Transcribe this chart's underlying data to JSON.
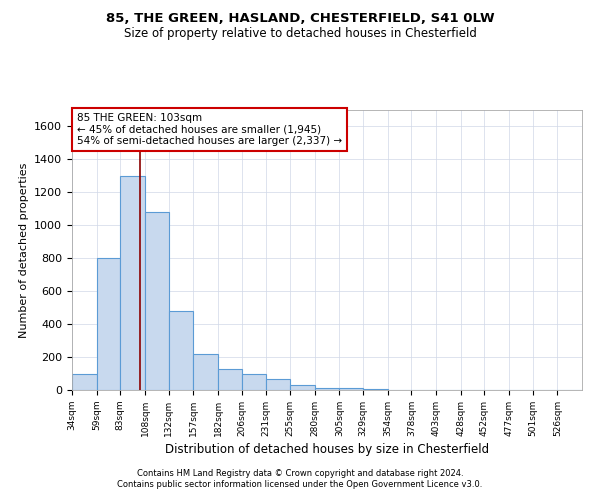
{
  "title_line1": "85, THE GREEN, HASLAND, CHESTERFIELD, S41 0LW",
  "title_line2": "Size of property relative to detached houses in Chesterfield",
  "xlabel": "Distribution of detached houses by size in Chesterfield",
  "ylabel": "Number of detached properties",
  "bin_labels": [
    "34sqm",
    "59sqm",
    "83sqm",
    "108sqm",
    "132sqm",
    "157sqm",
    "182sqm",
    "206sqm",
    "231sqm",
    "255sqm",
    "280sqm",
    "305sqm",
    "329sqm",
    "354sqm",
    "378sqm",
    "403sqm",
    "428sqm",
    "452sqm",
    "477sqm",
    "501sqm",
    "526sqm"
  ],
  "bin_edges": [
    34,
    59,
    83,
    108,
    132,
    157,
    182,
    206,
    231,
    255,
    280,
    305,
    329,
    354,
    378,
    403,
    428,
    452,
    477,
    501,
    526,
    551
  ],
  "bar_values": [
    100,
    800,
    1300,
    1080,
    480,
    220,
    130,
    100,
    65,
    30,
    15,
    10,
    5,
    3,
    2,
    1,
    1,
    0,
    0,
    0,
    0
  ],
  "bar_color": "#c8d9ee",
  "bar_edge_color": "#5b9bd5",
  "property_size": 103,
  "vline_color": "#8b0000",
  "annotation_line1": "85 THE GREEN: 103sqm",
  "annotation_line2": "← 45% of detached houses are smaller (1,945)",
  "annotation_line3": "54% of semi-detached houses are larger (2,337) →",
  "annotation_box_edgecolor": "#cc0000",
  "ylim": [
    0,
    1700
  ],
  "yticks": [
    0,
    200,
    400,
    600,
    800,
    1000,
    1200,
    1400,
    1600
  ],
  "footer_line1": "Contains HM Land Registry data © Crown copyright and database right 2024.",
  "footer_line2": "Contains public sector information licensed under the Open Government Licence v3.0.",
  "background_color": "#ffffff",
  "grid_color": "#d0d8e8"
}
